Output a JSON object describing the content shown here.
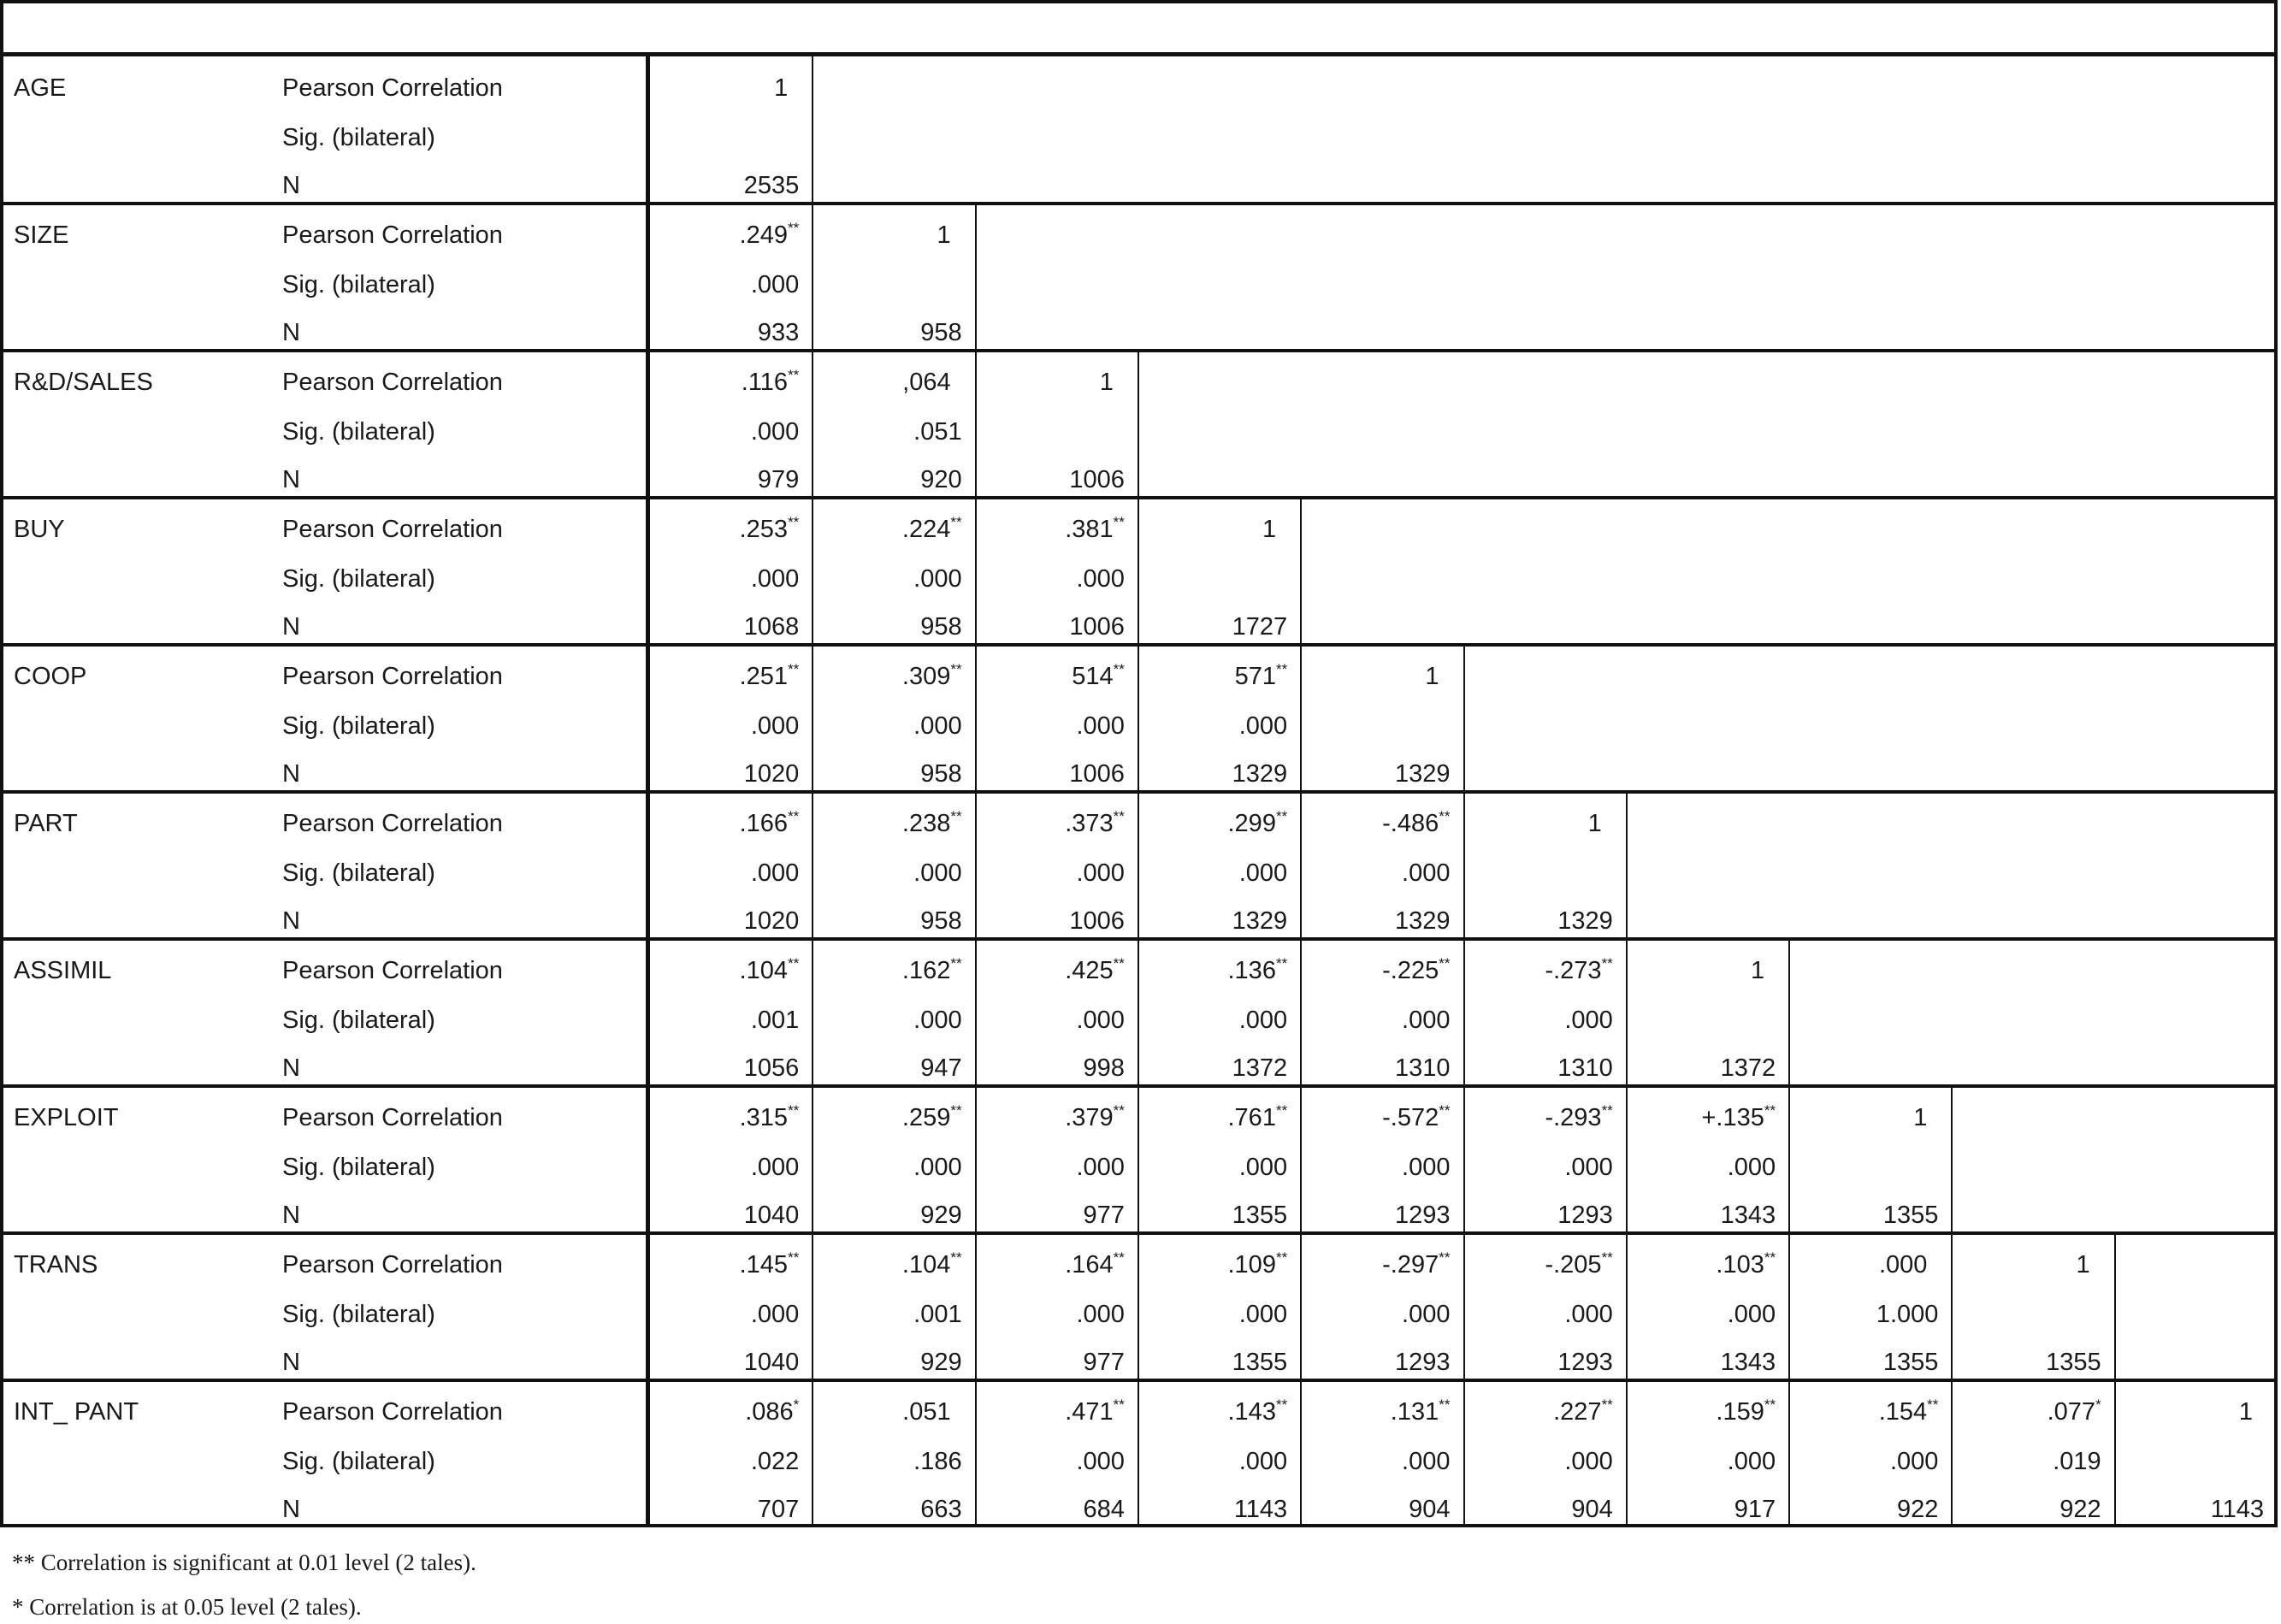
{
  "table": {
    "stat_labels": [
      "Pearson Correlation",
      "Sig. (bilateral)",
      "N"
    ],
    "variables": [
      {
        "name": "AGE",
        "corr": [
          "1"
        ],
        "stars": [
          null
        ],
        "sig": [],
        "n": [
          "2535"
        ]
      },
      {
        "name": "SIZE",
        "corr": [
          ".249",
          "1"
        ],
        "stars": [
          "**",
          null
        ],
        "sig": [
          ".000"
        ],
        "n": [
          "933",
          "958"
        ]
      },
      {
        "name": "R&D/SALES",
        "corr": [
          ".116",
          ",064",
          "1"
        ],
        "stars": [
          "**",
          null,
          null
        ],
        "sig": [
          ".000",
          ".051"
        ],
        "n": [
          "979",
          "920",
          "1006"
        ]
      },
      {
        "name": "BUY",
        "corr": [
          ".253",
          ".224",
          ".381",
          "1"
        ],
        "stars": [
          "**",
          "**",
          "**",
          null
        ],
        "sig": [
          ".000",
          ".000",
          ".000"
        ],
        "n": [
          "1068",
          "958",
          "1006",
          "1727"
        ]
      },
      {
        "name": "COOP",
        "corr": [
          ".251",
          ".309",
          "514",
          "571",
          "1"
        ],
        "stars": [
          "**",
          "**",
          "**",
          "**",
          null
        ],
        "sig": [
          ".000",
          ".000",
          ".000",
          ".000"
        ],
        "n": [
          "1020",
          "958",
          "1006",
          "1329",
          "1329"
        ]
      },
      {
        "name": "PART",
        "corr": [
          ".166",
          ".238",
          ".373",
          ".299",
          "-.486",
          "1"
        ],
        "stars": [
          "**",
          "**",
          "**",
          "**",
          "**",
          null
        ],
        "sig": [
          ".000",
          ".000",
          ".000",
          ".000",
          ".000"
        ],
        "n": [
          "1020",
          "958",
          "1006",
          "1329",
          "1329",
          "1329"
        ]
      },
      {
        "name": "ASSIMIL",
        "corr": [
          ".104",
          ".162",
          ".425",
          ".136",
          "-.225",
          "-.273",
          "1"
        ],
        "stars": [
          "**",
          "**",
          "**",
          "**",
          "**",
          "**",
          null
        ],
        "sig": [
          ".001",
          ".000",
          ".000",
          ".000",
          ".000",
          ".000"
        ],
        "n": [
          "1056",
          "947",
          "998",
          "1372",
          "1310",
          "1310",
          "1372"
        ]
      },
      {
        "name": "EXPLOIT",
        "corr": [
          ".315",
          ".259",
          ".379",
          ".761",
          "-.572",
          "-.293",
          "+.135",
          "1"
        ],
        "stars": [
          "**",
          "**",
          "**",
          "**",
          "**",
          "**",
          "**",
          null
        ],
        "sig": [
          ".000",
          ".000",
          ".000",
          ".000",
          ".000",
          ".000",
          ".000"
        ],
        "n": [
          "1040",
          "929",
          "977",
          "1355",
          "1293",
          "1293",
          "1343",
          "1355"
        ]
      },
      {
        "name": "TRANS",
        "corr": [
          ".145",
          ".104",
          ".164",
          ".109",
          "-.297",
          "-.205",
          ".103",
          ".000",
          "1"
        ],
        "stars": [
          "**",
          "**",
          "**",
          "**",
          "**",
          "**",
          "**",
          null,
          null
        ],
        "sig": [
          ".000",
          ".001",
          ".000",
          ".000",
          ".000",
          ".000",
          ".000",
          "1.000"
        ],
        "n": [
          "1040",
          "929",
          "977",
          "1355",
          "1293",
          "1293",
          "1343",
          "1355",
          "1355"
        ]
      },
      {
        "name": "INT_ PANT",
        "corr": [
          ".086",
          ".051",
          ".471",
          ".143",
          ".131",
          ".227",
          ".159",
          ".154",
          ".077",
          "1"
        ],
        "stars": [
          "*",
          null,
          "**",
          "**",
          "**",
          "**",
          "**",
          "**",
          "*",
          null
        ],
        "sig": [
          ".022",
          ".186",
          ".000",
          ".000",
          ".000",
          ".000",
          ".000",
          ".000",
          ".019"
        ],
        "n": [
          "707",
          "663",
          "684",
          "1143",
          "904",
          "904",
          "917",
          "922",
          "922",
          "1143"
        ]
      }
    ]
  },
  "footnotes": [
    "** Correlation is significant at 0.01 level (2 tales).",
    "* Correlation is at 0.05 level (2 tales)."
  ]
}
